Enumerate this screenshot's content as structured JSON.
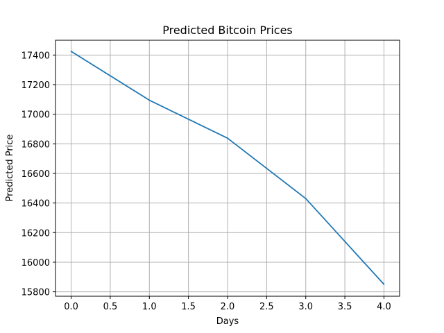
{
  "chart_data": {
    "type": "line",
    "title": "Predicted Bitcoin Prices",
    "xlabel": "Days",
    "ylabel": "Predicted Price",
    "xlim": [
      -0.2,
      4.2
    ],
    "ylim": [
      15770,
      17500
    ],
    "xticks": [
      0.0,
      0.5,
      1.0,
      1.5,
      2.0,
      2.5,
      3.0,
      3.5,
      4.0
    ],
    "xtick_labels": [
      "0.0",
      "0.5",
      "1.0",
      "1.5",
      "2.0",
      "2.5",
      "3.0",
      "3.5",
      "4.0"
    ],
    "yticks": [
      15800,
      16000,
      16200,
      16400,
      16600,
      16800,
      17000,
      17200,
      17400
    ],
    "ytick_labels": [
      "15800",
      "16000",
      "16200",
      "16400",
      "16600",
      "16800",
      "17000",
      "17200",
      "17400"
    ],
    "grid": true,
    "series": [
      {
        "color": "#1f77b4",
        "x": [
          0,
          1,
          2,
          3,
          4
        ],
        "y": [
          17425,
          17095,
          16838,
          16430,
          15850
        ]
      }
    ]
  }
}
